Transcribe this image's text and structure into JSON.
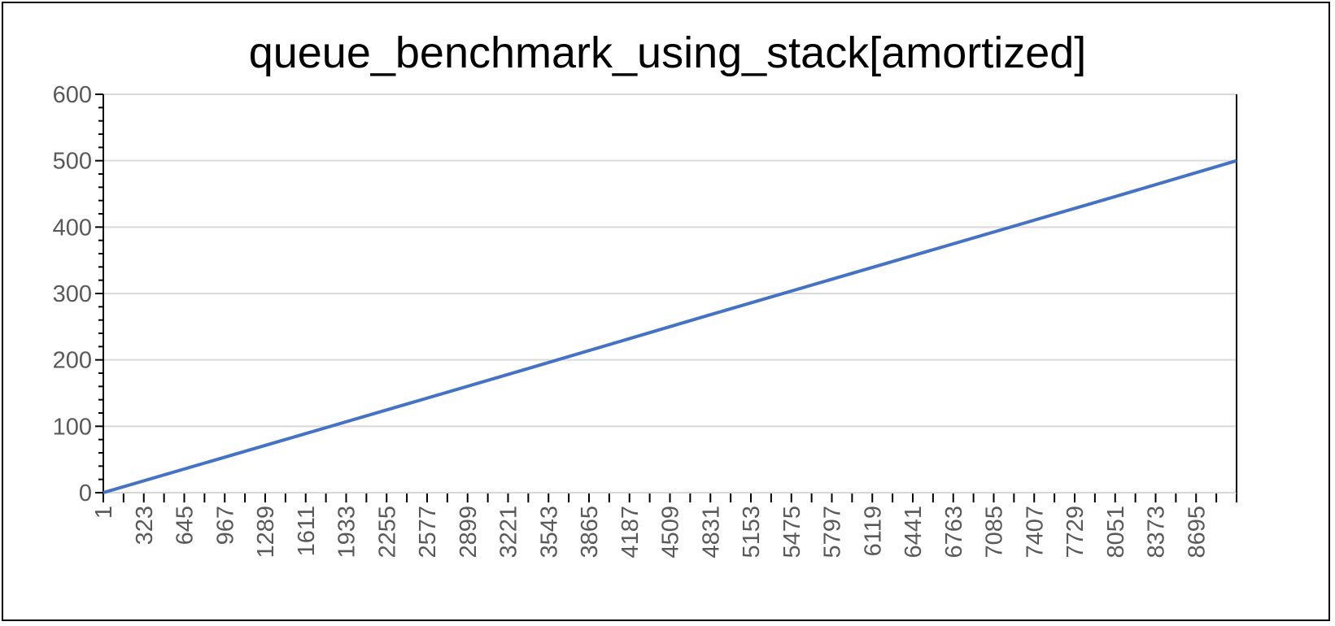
{
  "chart_data": {
    "type": "line",
    "title": "queue_benchmark_using_stack[amortized]",
    "xlabel": "",
    "ylabel": "",
    "ylim": [
      0,
      600
    ],
    "xlim": [
      1,
      9017
    ],
    "y_ticks": [
      0,
      100,
      200,
      300,
      400,
      500,
      600
    ],
    "x_tick_labels": [
      "1",
      "323",
      "645",
      "967",
      "1289",
      "1611",
      "1933",
      "2255",
      "2577",
      "2899",
      "3221",
      "3543",
      "3865",
      "4187",
      "4509",
      "4831",
      "5153",
      "5475",
      "5797",
      "6119",
      "6441",
      "6763",
      "7085",
      "7407",
      "7729",
      "8051",
      "8373",
      "8695"
    ],
    "grid": true,
    "legend": "none",
    "series": [
      {
        "color": "#4472C4",
        "x": [
          1,
          1611,
          3221,
          4831,
          6441,
          8051,
          9017
        ],
        "y": [
          0,
          89,
          178,
          268,
          357,
          446,
          500
        ]
      }
    ]
  }
}
